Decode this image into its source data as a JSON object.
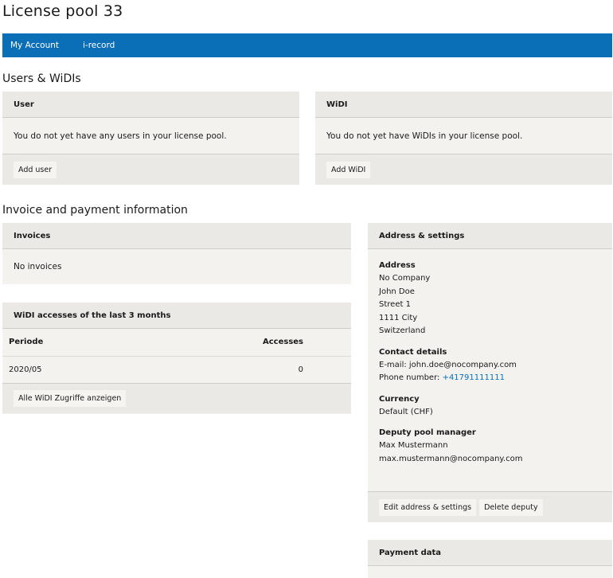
{
  "page_title": "License pool 33",
  "nav": [
    "My Account",
    "i-record"
  ],
  "users_section": {
    "heading": "Users & WiDIs",
    "user": {
      "title": "User",
      "message": "You do not yet have any users in your license pool.",
      "button": "Add user"
    },
    "widi": {
      "title": "WiDI",
      "message": "You do not yet have WiDIs in your license pool.",
      "button": "Add WiDI"
    }
  },
  "invoice_section": {
    "heading": "Invoice and payment information",
    "invoices": {
      "title": "Invoices",
      "message": "No invoices"
    },
    "accesses": {
      "title": "WiDI accesses of the last 3 months",
      "columns": [
        "Periode",
        "Accesses"
      ],
      "rows": [
        [
          "2020/05",
          "0"
        ]
      ],
      "button": "Alle WiDI Zugriffe anzeigen"
    },
    "address": {
      "title": "Address & settings",
      "address_label": "Address",
      "address_lines": [
        "No Company",
        "John Doe",
        "Street 1",
        "1111 City",
        "Switzerland"
      ],
      "contact_label": "Contact details",
      "email": "E-mail: john.doe@nocompany.com",
      "phone_label": "Phone number: ",
      "phone": "+41791111111",
      "currency_label": "Currency",
      "currency": "Default (CHF)",
      "deputy_label": "Deputy pool manager",
      "deputy_name": "Max Mustermann",
      "deputy_email": "max.mustermann@nocompany.com",
      "edit_button": "Edit address & settings",
      "delete_button": "Delete deputy"
    },
    "payment": {
      "title": "Payment data"
    }
  }
}
